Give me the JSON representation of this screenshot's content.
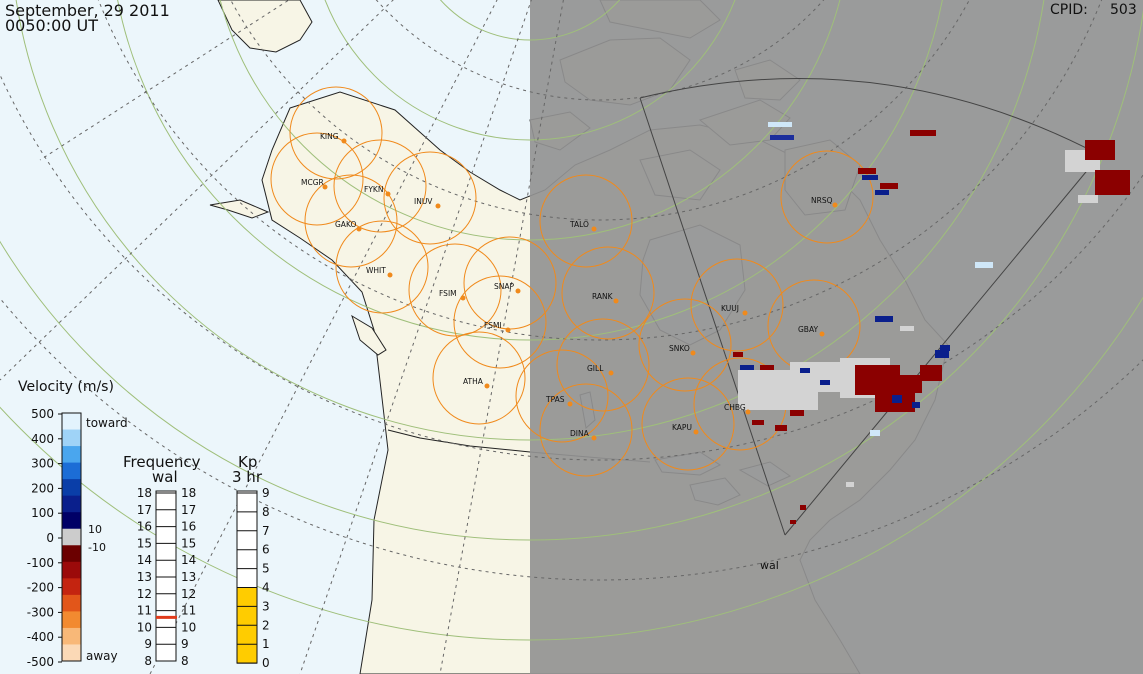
{
  "header": {
    "date": "September, 29 2011",
    "time": "0050:00 UT",
    "cpid_label": "CPID:",
    "cpid_value": "503"
  },
  "colors": {
    "ocean": "#ecf6fb",
    "land": "#f7f5e6",
    "night": "#939393",
    "coast": "#222222",
    "fov_circle": "#f08a1c",
    "grid": "#777777",
    "lat_circles": "#9fbf7a",
    "toward_dark": "#0a1f8c",
    "away_dark": "#8b0000",
    "ground_scatter": "#d3d3d3",
    "kp_fill": "#ffcc00",
    "freq_marker": "#e03a1a"
  },
  "stations": [
    {
      "code": "KING"
    },
    {
      "code": "MCGR"
    },
    {
      "code": "FYKN"
    },
    {
      "code": "INUV"
    },
    {
      "code": "GAKO"
    },
    {
      "code": "WHIT"
    },
    {
      "code": "FSIM"
    },
    {
      "code": "SNAP"
    },
    {
      "code": "FSMI"
    },
    {
      "code": "ATHA"
    },
    {
      "code": "TALO"
    },
    {
      "code": "RANK"
    },
    {
      "code": "GILL"
    },
    {
      "code": "TPAS"
    },
    {
      "code": "DINA"
    },
    {
      "code": "SNKO"
    },
    {
      "code": "KAPU"
    },
    {
      "code": "CHBG"
    },
    {
      "code": "KUUJ"
    },
    {
      "code": "GBAY"
    },
    {
      "code": "NRSQ"
    }
  ],
  "radar_label": "wal",
  "velocity_scale": {
    "title": "Velocity (m/s)",
    "toward_label": "toward",
    "away_label": "away",
    "ticks": [
      "500",
      "400",
      "300",
      "200",
      "100",
      "0",
      "-100",
      "-200",
      "-300",
      "-400",
      "-500"
    ],
    "gs_ticks": [
      "10",
      "-10"
    ]
  },
  "frequency_scale": {
    "title": "Frequency",
    "subtitle": "wal",
    "ticks": [
      "18",
      "17",
      "16",
      "15",
      "14",
      "13",
      "12",
      "11",
      "10",
      "9",
      "8"
    ],
    "current_mhz": 10.6
  },
  "kp_scale": {
    "title": "Kp",
    "subtitle": "3 hr",
    "ticks": [
      "9",
      "8",
      "7",
      "6",
      "5",
      "4",
      "3",
      "2",
      "1",
      "0"
    ],
    "value": 4
  }
}
